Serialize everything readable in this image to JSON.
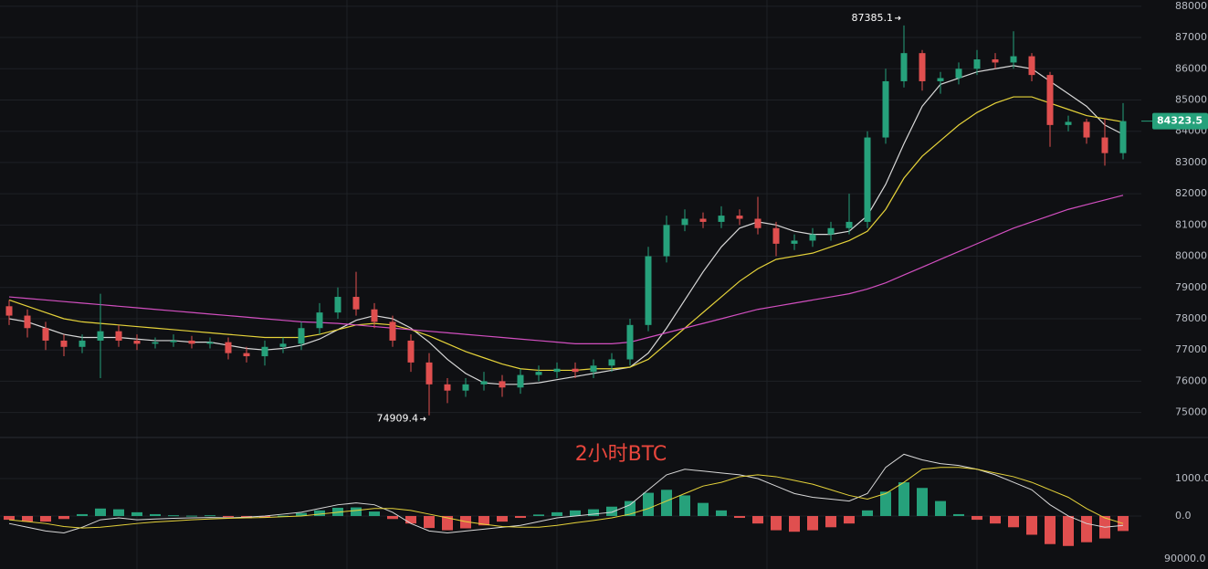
{
  "chart_data": {
    "type": "candlestick",
    "title": "2小时BTC",
    "up_color": "#26a17b",
    "down_color": "#e04f4f",
    "grid": true,
    "ylim": [
      74200,
      88200
    ],
    "yticks": [
      {
        "value": 88000,
        "label": "88000.0"
      },
      {
        "value": 87000,
        "label": "87000.0"
      },
      {
        "value": 86000,
        "label": "86000.0"
      },
      {
        "value": 85000,
        "label": "85000.0"
      },
      {
        "value": 84000,
        "label": "84000.0"
      },
      {
        "value": 83000,
        "label": "83000.0"
      },
      {
        "value": 82000,
        "label": "82000.0"
      },
      {
        "value": 81000,
        "label": "81000.0"
      },
      {
        "value": 80000,
        "label": "80000.0"
      },
      {
        "value": 79000,
        "label": "79000.0"
      },
      {
        "value": 78000,
        "label": "78000.0"
      },
      {
        "value": 77000,
        "label": "77000.0"
      },
      {
        "value": 76000,
        "label": "76000.0"
      },
      {
        "value": 75000,
        "label": "75000.0"
      }
    ],
    "last_price": 84323.5,
    "high_label": 87385.1,
    "low_label": 74909.4,
    "open": [
      78400,
      78100,
      77700,
      77300,
      77100,
      77300,
      77600,
      77300,
      77200,
      77250,
      77300,
      77200,
      77250,
      76900,
      76800,
      77100,
      77200,
      77700,
      78200,
      78700,
      78300,
      77900,
      77300,
      76600,
      75900,
      75700,
      75900,
      76000,
      75800,
      76200,
      76300,
      76400,
      76300,
      76500,
      76700,
      77800,
      80000,
      81000,
      81200,
      81100,
      81300,
      81200,
      80900,
      80400,
      80500,
      80700,
      80900,
      81100,
      83800,
      85600,
      86500,
      85600,
      85700,
      86000,
      86300,
      86200,
      86400,
      85800,
      84200,
      84300,
      83800,
      83300
    ],
    "high": [
      78600,
      78300,
      77900,
      77500,
      77500,
      78800,
      77800,
      77500,
      77400,
      77500,
      77450,
      77400,
      77400,
      77100,
      77300,
      77400,
      77900,
      78500,
      79000,
      79500,
      78500,
      78100,
      77500,
      76900,
      76100,
      76100,
      76300,
      76200,
      76400,
      76500,
      76600,
      76600,
      76700,
      76900,
      78000,
      80300,
      81300,
      81500,
      81400,
      81600,
      81500,
      81900,
      81100,
      80700,
      80900,
      81100,
      82000,
      84000,
      86000,
      87385.1,
      86600,
      85900,
      86200,
      86600,
      86500,
      87200,
      86500,
      85900,
      84500,
      84400,
      84400,
      84900
    ],
    "low": [
      77800,
      77400,
      77000,
      76800,
      76900,
      76100,
      77100,
      77000,
      77050,
      77100,
      77050,
      77050,
      76700,
      76600,
      76500,
      76900,
      77000,
      77500,
      78000,
      78100,
      77700,
      77100,
      76300,
      74909.4,
      75300,
      75500,
      75700,
      75500,
      75600,
      76000,
      76100,
      76100,
      76100,
      76300,
      76500,
      77600,
      79800,
      80800,
      80900,
      80900,
      81000,
      80700,
      80000,
      80200,
      80300,
      80500,
      80700,
      80900,
      83600,
      85400,
      85300,
      85200,
      85500,
      85800,
      86000,
      86000,
      85600,
      83500,
      84000,
      83600,
      82900,
      83100
    ],
    "close": [
      78100,
      77700,
      77300,
      77100,
      77300,
      77600,
      77300,
      77200,
      77250,
      77300,
      77200,
      77250,
      76900,
      76800,
      77100,
      77200,
      77700,
      78200,
      78700,
      78300,
      77900,
      77300,
      76600,
      75900,
      75700,
      75900,
      76000,
      75800,
      76200,
      76300,
      76400,
      76300,
      76500,
      76700,
      77800,
      80000,
      81000,
      81200,
      81100,
      81300,
      81200,
      80900,
      80400,
      80500,
      80700,
      80900,
      81100,
      83800,
      85600,
      86500,
      85600,
      85700,
      86000,
      86300,
      86200,
      86400,
      85800,
      84200,
      84300,
      83800,
      83300,
      84323.5
    ],
    "lines": [
      {
        "color": "#d8d8d8",
        "values": [
          78000,
          77900,
          77700,
          77500,
          77400,
          77400,
          77400,
          77350,
          77300,
          77300,
          77250,
          77250,
          77150,
          77050,
          77000,
          77050,
          77150,
          77350,
          77650,
          77950,
          78100,
          78000,
          77700,
          77250,
          76700,
          76250,
          75950,
          75900,
          75900,
          75950,
          76050,
          76150,
          76250,
          76350,
          76450,
          76900,
          77700,
          78600,
          79500,
          80300,
          80900,
          81100,
          81000,
          80800,
          80700,
          80700,
          80800,
          81300,
          82300,
          83600,
          84800,
          85500,
          85700,
          85900,
          86000,
          86100,
          86000,
          85600,
          85200,
          84800,
          84200,
          83900
        ]
      },
      {
        "color": "#e6d33a",
        "values": [
          78600,
          78400,
          78200,
          78000,
          77900,
          77850,
          77800,
          77750,
          77700,
          77650,
          77600,
          77550,
          77500,
          77450,
          77400,
          77400,
          77400,
          77500,
          77650,
          77800,
          77850,
          77800,
          77650,
          77450,
          77200,
          76950,
          76750,
          76550,
          76400,
          76350,
          76350,
          76350,
          76400,
          76400,
          76450,
          76700,
          77200,
          77700,
          78200,
          78700,
          79200,
          79600,
          79900,
          80000,
          80100,
          80300,
          80500,
          80800,
          81500,
          82500,
          83200,
          83700,
          84200,
          84600,
          84900,
          85100,
          85100,
          84900,
          84700,
          84500,
          84400,
          84300
        ]
      },
      {
        "color": "#d24fc0",
        "values": [
          78700,
          78650,
          78600,
          78550,
          78500,
          78450,
          78400,
          78350,
          78300,
          78250,
          78200,
          78150,
          78100,
          78050,
          78000,
          77950,
          77900,
          77880,
          77850,
          77800,
          77750,
          77700,
          77650,
          77600,
          77550,
          77500,
          77450,
          77400,
          77350,
          77300,
          77250,
          77200,
          77200,
          77200,
          77250,
          77400,
          77550,
          77700,
          77850,
          78000,
          78150,
          78300,
          78400,
          78500,
          78600,
          78700,
          78800,
          78950,
          79150,
          79400,
          79650,
          79900,
          80150,
          80400,
          80650,
          80900,
          81100,
          81300,
          81500,
          81650,
          81800,
          81950
        ]
      }
    ],
    "macd": {
      "ylim": [
        -1415,
        2073
      ],
      "yticks": [
        {
          "value": 1000,
          "label": "1000.0"
        },
        {
          "value": 0,
          "label": "0.0"
        }
      ],
      "bottom_label": "90000.0",
      "histogram": [
        -100,
        -150,
        -150,
        -80,
        50,
        200,
        180,
        100,
        50,
        20,
        10,
        20,
        -30,
        -60,
        -40,
        10,
        80,
        150,
        220,
        230,
        120,
        -80,
        -200,
        -320,
        -380,
        -330,
        -250,
        -150,
        -50,
        40,
        100,
        150,
        180,
        250,
        400,
        620,
        700,
        550,
        350,
        150,
        -50,
        -200,
        -380,
        -420,
        -380,
        -300,
        -200,
        150,
        650,
        900,
        750,
        400,
        50,
        -100,
        -200,
        -300,
        -500,
        -750,
        -800,
        -700,
        -600,
        -400
      ],
      "lines": [
        {
          "color": "#d8d8d8",
          "values": [
            -200,
            -300,
            -400,
            -450,
            -300,
            -100,
            -50,
            -100,
            -80,
            -60,
            -50,
            -40,
            -50,
            -30,
            0,
            50,
            100,
            200,
            300,
            350,
            300,
            100,
            -200,
            -400,
            -450,
            -400,
            -350,
            -300,
            -250,
            -150,
            -50,
            0,
            50,
            100,
            300,
            700,
            1100,
            1250,
            1200,
            1150,
            1100,
            1000,
            800,
            600,
            500,
            450,
            400,
            600,
            1300,
            1650,
            1500,
            1400,
            1350,
            1250,
            1100,
            900,
            700,
            300,
            0,
            -200,
            -300,
            -250
          ]
        },
        {
          "color": "#e6d33a",
          "values": [
            -100,
            -150,
            -200,
            -280,
            -320,
            -300,
            -250,
            -200,
            -160,
            -130,
            -100,
            -80,
            -60,
            -50,
            -40,
            -20,
            0,
            50,
            100,
            150,
            200,
            200,
            150,
            50,
            -50,
            -150,
            -220,
            -280,
            -300,
            -300,
            -250,
            -180,
            -120,
            -50,
            50,
            200,
            400,
            600,
            800,
            900,
            1050,
            1100,
            1050,
            950,
            850,
            700,
            550,
            450,
            600,
            900,
            1250,
            1300,
            1300,
            1250,
            1150,
            1050,
            900,
            700,
            500,
            200,
            -50,
            -200
          ]
        }
      ]
    }
  }
}
